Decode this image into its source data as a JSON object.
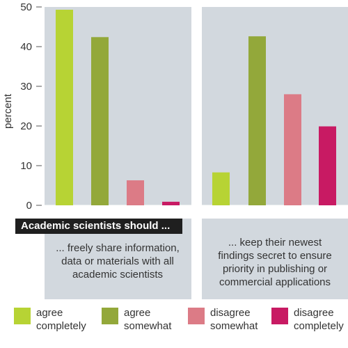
{
  "chart_data": {
    "type": "bar",
    "ylabel": "percent",
    "ylim": [
      0,
      50
    ],
    "yticks": [
      0,
      10,
      20,
      30,
      40,
      50
    ],
    "banner": "Academic scientists should ...",
    "panels": [
      {
        "statement": "... freely share information,\ndata or materials with all\nacademic scientists",
        "values": [
          49.3,
          42.4,
          6.3,
          0.9
        ]
      },
      {
        "statement": "... keep their newest\nfindings secret to ensure\npriority in publishing or\ncommercial applications",
        "values": [
          8.3,
          42.6,
          28.0,
          19.9
        ]
      }
    ],
    "series": [
      {
        "name": "agree\ncompletely",
        "color": "#b7d334"
      },
      {
        "name": "agree\nsomewhat",
        "color": "#93a83a"
      },
      {
        "name": "disagree\nsomewhat",
        "color": "#dc7b86"
      },
      {
        "name": "disagree\ncompletely",
        "color": "#c81a63"
      }
    ],
    "colors": {
      "panel_background": "#d2d8de",
      "axis_text": "#333333"
    }
  }
}
